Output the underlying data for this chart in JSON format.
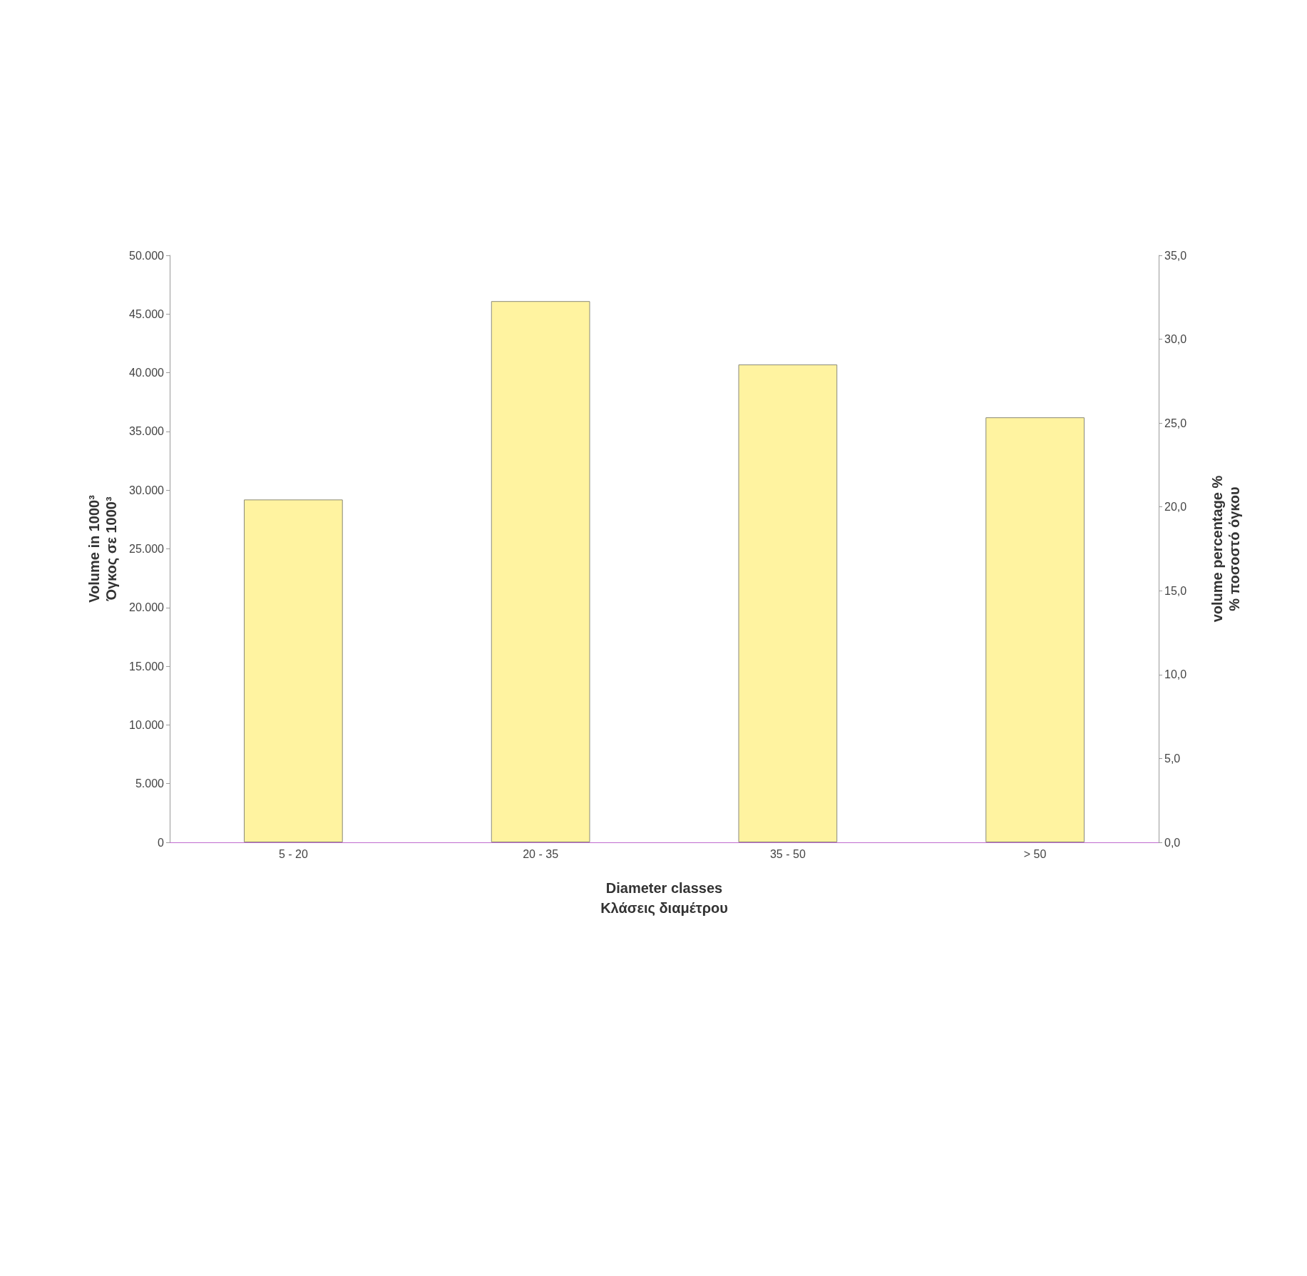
{
  "chart_data": {
    "type": "bar",
    "xlabel": "Diameter classes\nΚλάσεις διαμέτρου",
    "ylabel": "Volume in 1000³\nΌγκος σε 1000³",
    "y2label": "volume percentage %\n% ποσοστό όγκου",
    "categories": [
      "5 - 20",
      "20 - 35",
      "35 - 50",
      "> 50"
    ],
    "series": [
      {
        "color": "#fff3a0",
        "values": [
          29200,
          46100,
          40700,
          36200
        ]
      }
    ],
    "ylim": [
      0,
      50000
    ],
    "yticks": [
      {
        "value": 0,
        "label": "0"
      },
      {
        "value": 5000,
        "label": "5.000"
      },
      {
        "value": 10000,
        "label": "10.000"
      },
      {
        "value": 15000,
        "label": "15.000"
      },
      {
        "value": 20000,
        "label": "20.000"
      },
      {
        "value": 25000,
        "label": "25.000"
      },
      {
        "value": 30000,
        "label": "30.000"
      },
      {
        "value": 35000,
        "label": "35.000"
      },
      {
        "value": 40000,
        "label": "40.000"
      },
      {
        "value": 45000,
        "label": "45.000"
      },
      {
        "value": 50000,
        "label": "50.000"
      }
    ],
    "y2lim": [
      0,
      35
    ],
    "y2ticks": [
      {
        "value": 0,
        "label": "0,0"
      },
      {
        "value": 5,
        "label": "5,0"
      },
      {
        "value": 10,
        "label": "10,0"
      },
      {
        "value": 15,
        "label": "15,0"
      },
      {
        "value": 20,
        "label": "20,0"
      },
      {
        "value": 25,
        "label": "25,0"
      },
      {
        "value": 30,
        "label": "30,0"
      },
      {
        "value": 35,
        "label": "35,0"
      }
    ],
    "grid": false
  }
}
